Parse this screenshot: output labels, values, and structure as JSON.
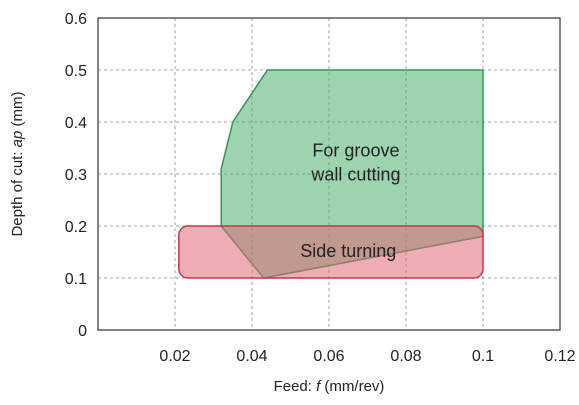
{
  "chart_data": {
    "type": "area",
    "x_axis": {
      "label_prefix": "Feed: ",
      "label_symbol": "f",
      "label_suffix": " (mm/rev)",
      "range": [
        0,
        0.12
      ],
      "ticks": [
        0.02,
        0.04,
        0.06,
        0.08,
        0.1,
        0.12
      ],
      "tick_labels": [
        "0.02",
        "0.04",
        "0.06",
        "0.08",
        "0.1",
        "0.12"
      ]
    },
    "y_axis": {
      "label_prefix": "Depth of cut: ",
      "label_symbol": "ap",
      "label_suffix": " (mm)",
      "range": [
        0,
        0.6
      ],
      "ticks": [
        0,
        0.1,
        0.2,
        0.3,
        0.4,
        0.5,
        0.6
      ],
      "tick_labels": [
        "0",
        "0.1",
        "0.2",
        "0.3",
        "0.4",
        "0.5",
        "0.6"
      ]
    },
    "grid": true,
    "regions": [
      {
        "name": "For groove wall cutting",
        "label_lines": [
          "For groove",
          "wall cutting"
        ],
        "color": "#4caf6e",
        "stroke": "#2e9a58",
        "label_anchor": [
          0.067,
          0.32
        ],
        "points": [
          [
            0.032,
            0.2
          ],
          [
            0.032,
            0.31
          ],
          [
            0.035,
            0.4
          ],
          [
            0.044,
            0.5
          ],
          [
            0.1,
            0.5
          ],
          [
            0.1,
            0.18
          ],
          [
            0.043,
            0.1
          ]
        ]
      },
      {
        "name": "Side turning",
        "label_lines": [
          "Side turning"
        ],
        "color": "#e06a78",
        "stroke": "#c8354a",
        "label_anchor": [
          0.065,
          0.15
        ],
        "points": [
          [
            0.021,
            0.1
          ],
          [
            0.1,
            0.1
          ],
          [
            0.1,
            0.2
          ],
          [
            0.021,
            0.2
          ]
        ]
      }
    ]
  }
}
